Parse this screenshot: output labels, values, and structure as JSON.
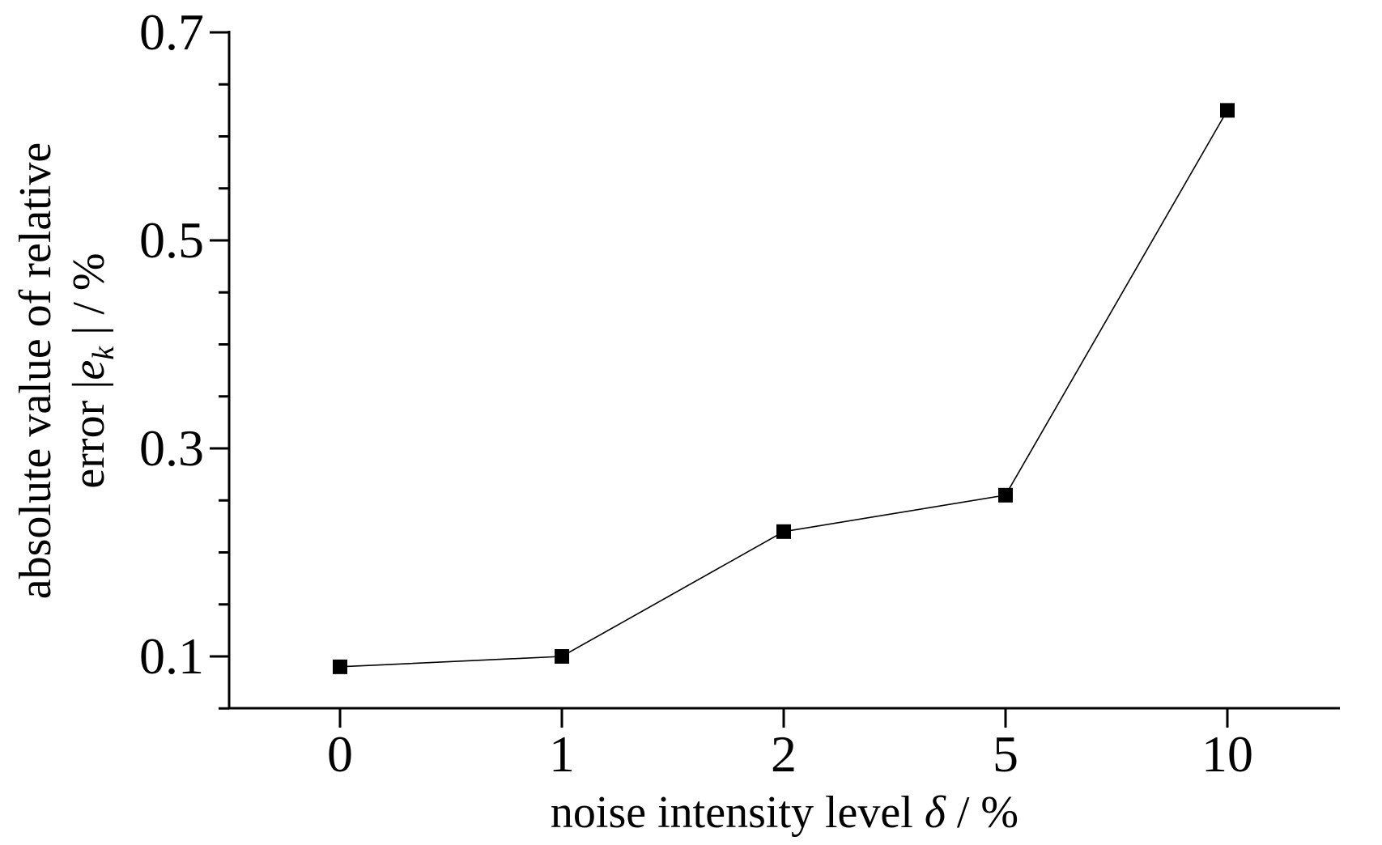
{
  "chart_data": {
    "type": "line",
    "x": [
      "0",
      "1",
      "2",
      "5",
      "10"
    ],
    "series": [
      {
        "values": [
          0.09,
          0.1,
          0.22,
          0.255,
          0.625
        ]
      }
    ],
    "xlabel_prefix": "noise intensity level ",
    "xlabel_symbol": "δ",
    "xlabel_suffix": " / %",
    "ylabel_line1": "absolute value of relative",
    "ylabel_line2_prefix": "error |",
    "ylabel_line2_symbol": "e",
    "ylabel_line2_subscript": "k",
    "ylabel_line2_suffix": " | / %",
    "yticks": [
      "0.1",
      "0.3",
      "0.5",
      "0.7"
    ],
    "ylim": [
      0.05,
      0.7
    ],
    "grid": false,
    "legend": "none",
    "marker": "square",
    "colors": {
      "line": "#000000",
      "marker": "#000000",
      "axis": "#000000"
    }
  }
}
